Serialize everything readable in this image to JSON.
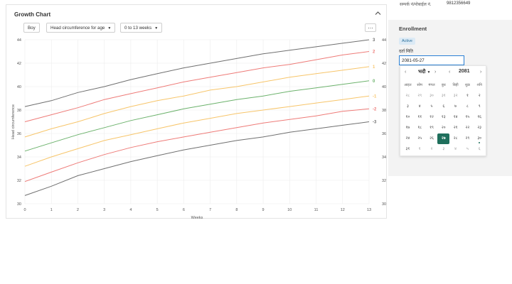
{
  "growth_chart": {
    "title": "Growth Chart",
    "collapse_icon": "chevron-up-icon",
    "controls": {
      "sex": "Boy",
      "indicator": "Head circumference for age",
      "range": "0 to 13 weeks",
      "more_icon": "more-horizontal-icon"
    }
  },
  "chart_data": {
    "type": "line",
    "xlabel": "Weeks",
    "ylabel": "Head circumference",
    "xlim": [
      0,
      13
    ],
    "ylim": [
      30,
      44
    ],
    "x_ticks": [
      0,
      1,
      2,
      3,
      4,
      5,
      6,
      7,
      8,
      9,
      10,
      11,
      12,
      13
    ],
    "y_ticks": [
      30,
      32,
      34,
      36,
      38,
      40,
      42,
      44
    ],
    "grid": true,
    "x": [
      0,
      1,
      2,
      3,
      4,
      5,
      6,
      7,
      8,
      9,
      10,
      11,
      12,
      13
    ],
    "series": [
      {
        "name": "3",
        "color": "#6f6f6f",
        "values": [
          38.3,
          38.8,
          39.5,
          40.0,
          40.6,
          41.1,
          41.6,
          42.0,
          42.4,
          42.8,
          43.1,
          43.4,
          43.7,
          44.0
        ]
      },
      {
        "name": "2",
        "color": "#ee7b78",
        "values": [
          37.0,
          37.6,
          38.2,
          38.9,
          39.4,
          39.9,
          40.4,
          40.8,
          41.2,
          41.6,
          41.9,
          42.3,
          42.7,
          43.0
        ]
      },
      {
        "name": "1",
        "color": "#f7c56a",
        "values": [
          35.7,
          36.4,
          37.0,
          37.7,
          38.3,
          38.8,
          39.2,
          39.7,
          40.0,
          40.4,
          40.8,
          41.1,
          41.4,
          41.7
        ]
      },
      {
        "name": "0",
        "color": "#6cb26c",
        "values": [
          34.5,
          35.2,
          35.9,
          36.5,
          37.1,
          37.6,
          38.1,
          38.5,
          38.9,
          39.2,
          39.6,
          39.9,
          40.2,
          40.5
        ]
      },
      {
        "name": "-1",
        "color": "#f7c56a",
        "values": [
          33.2,
          34.0,
          34.7,
          35.4,
          35.9,
          36.4,
          36.9,
          37.3,
          37.7,
          38.0,
          38.3,
          38.6,
          38.9,
          39.2
        ]
      },
      {
        "name": "-2",
        "color": "#ee7b78",
        "values": [
          31.9,
          32.7,
          33.5,
          34.2,
          34.8,
          35.3,
          35.7,
          36.1,
          36.5,
          36.9,
          37.2,
          37.5,
          37.9,
          38.1
        ]
      },
      {
        "name": "-3",
        "color": "#6f6f6f",
        "values": [
          30.7,
          31.5,
          32.4,
          33.0,
          33.6,
          34.1,
          34.6,
          35.0,
          35.4,
          35.7,
          36.1,
          36.4,
          36.7,
          37.0
        ]
      }
    ]
  },
  "profile": {
    "phone_label": "सम्पर्क नं/मोबाईल नं.",
    "phone_value": "9812356649"
  },
  "enrollment": {
    "title": "Enrollment",
    "status": "Active",
    "date_label": "दर्ता मिति",
    "date_value": "2081-05-27"
  },
  "calendar": {
    "prev_month_icon": "chevron-left-icon",
    "next_month_icon": "chevron-right-icon",
    "prev_year_icon": "chevron-left-icon",
    "next_year_icon": "chevron-right-icon",
    "month": "भदौ",
    "year": "2081",
    "weekdays": [
      "आइत",
      "सोम",
      "मंगल",
      "बुध",
      "बिही",
      "शुक्र",
      "शनि"
    ],
    "weeks": [
      [
        {
          "d": "२८",
          "m": true
        },
        {
          "d": "२९",
          "m": true
        },
        {
          "d": "३०",
          "m": true
        },
        {
          "d": "३१",
          "m": true
        },
        {
          "d": "३२",
          "m": true
        },
        {
          "d": "१"
        },
        {
          "d": "२"
        }
      ],
      [
        {
          "d": "३"
        },
        {
          "d": "४"
        },
        {
          "d": "५"
        },
        {
          "d": "६"
        },
        {
          "d": "७"
        },
        {
          "d": "८"
        },
        {
          "d": "९"
        }
      ],
      [
        {
          "d": "१०"
        },
        {
          "d": "११"
        },
        {
          "d": "१२"
        },
        {
          "d": "१३"
        },
        {
          "d": "१४"
        },
        {
          "d": "१५"
        },
        {
          "d": "१६"
        }
      ],
      [
        {
          "d": "१७"
        },
        {
          "d": "१८"
        },
        {
          "d": "१९"
        },
        {
          "d": "२०"
        },
        {
          "d": "२१"
        },
        {
          "d": "२२"
        },
        {
          "d": "२३"
        }
      ],
      [
        {
          "d": "२४"
        },
        {
          "d": "२५"
        },
        {
          "d": "२६"
        },
        {
          "d": "२७",
          "sel": true
        },
        {
          "d": "२८"
        },
        {
          "d": "२९"
        },
        {
          "d": "३०",
          "today": true
        }
      ],
      [
        {
          "d": "३१"
        },
        {
          "d": "१",
          "m": true
        },
        {
          "d": "२",
          "m": true
        },
        {
          "d": "३",
          "m": true
        },
        {
          "d": "४",
          "m": true
        },
        {
          "d": "५",
          "m": true
        },
        {
          "d": "६",
          "m": true
        }
      ]
    ]
  }
}
